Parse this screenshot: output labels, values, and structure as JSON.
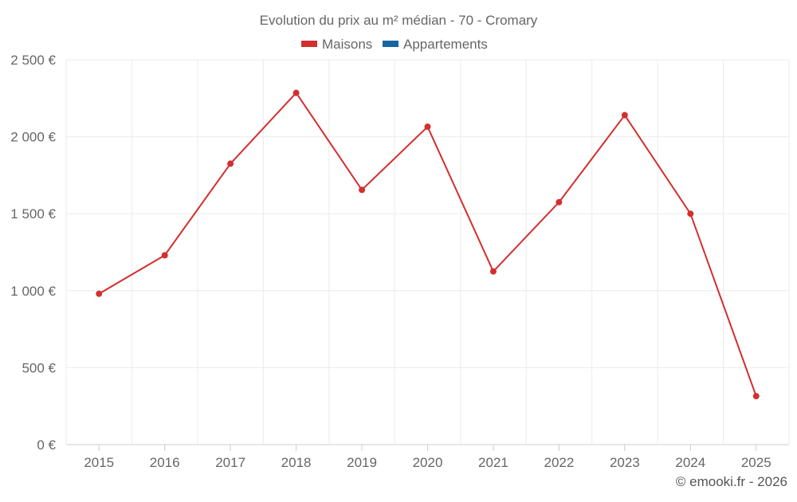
{
  "chart_data": {
    "type": "line",
    "title": "Evolution du prix au m² médian - 70 - Cromary",
    "legend": [
      {
        "name": "Maisons",
        "color": "#d32f2f"
      },
      {
        "name": "Appartements",
        "color": "#1565a0"
      }
    ],
    "categories": [
      "2015",
      "2016",
      "2017",
      "2018",
      "2019",
      "2020",
      "2021",
      "2022",
      "2023",
      "2024",
      "2025"
    ],
    "series": [
      {
        "name": "Maisons",
        "color": "#d32f2f",
        "values": [
          980,
          1230,
          1825,
          2285,
          1655,
          2065,
          1125,
          1575,
          2140,
          1500,
          315
        ]
      }
    ],
    "y_ticks": [
      0,
      500,
      1000,
      1500,
      2000,
      2500
    ],
    "y_tick_labels": [
      "0 €",
      "500 €",
      "1 000 €",
      "1 500 €",
      "2 000 €",
      "2 500 €"
    ],
    "ylim": [
      0,
      2500
    ],
    "grid": true,
    "legend_position": "top-center",
    "credit": "© emooki.fr - 2026"
  }
}
